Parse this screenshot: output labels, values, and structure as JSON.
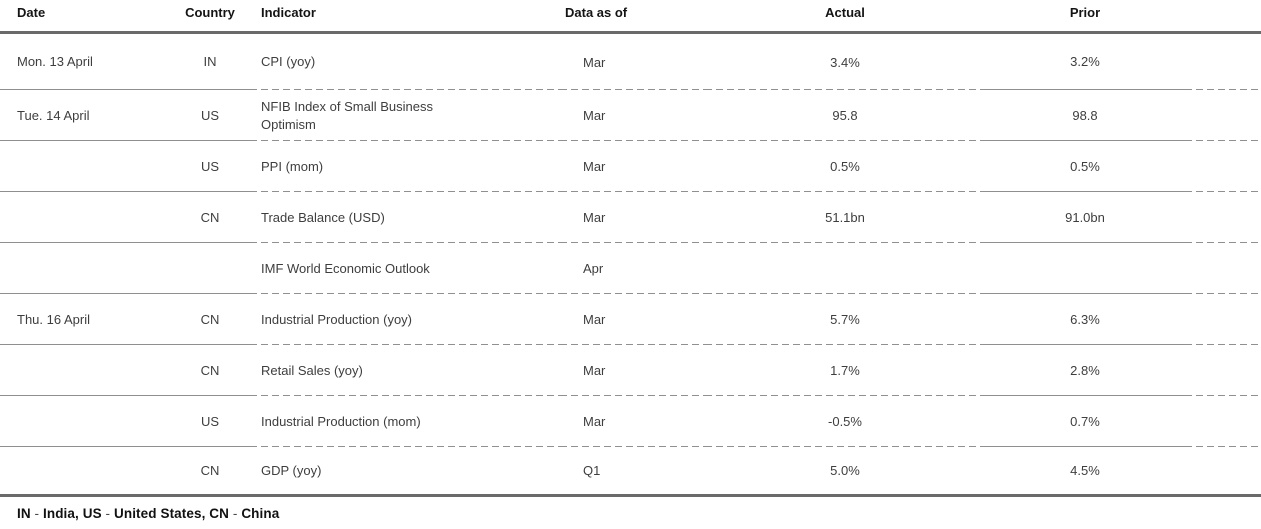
{
  "table": {
    "columns": {
      "date": "Date",
      "country": "Country",
      "indicator": "Indicator",
      "asof": "Data as of",
      "actual": "Actual",
      "prior": "Prior"
    },
    "rows": [
      {
        "date": "Mon. 13 April",
        "country": "IN",
        "indicator": "CPI (yoy)",
        "asof": "Mar",
        "actual": "3.4%",
        "prior": "3.2%"
      },
      {
        "date": "Tue. 14 April",
        "country": "US",
        "indicator": "NFIB Index of Small Business Optimism",
        "asof": "Mar",
        "actual": "95.8",
        "prior": "98.8"
      },
      {
        "date": "",
        "country": "US",
        "indicator": "PPI (mom)",
        "asof": "Mar",
        "actual": "0.5%",
        "prior": "0.5%"
      },
      {
        "date": "",
        "country": "CN",
        "indicator": "Trade Balance (USD)",
        "asof": "Mar",
        "actual": "51.1bn",
        "prior": "91.0bn"
      },
      {
        "date": "",
        "country": "",
        "indicator": "IMF World Economic Outlook",
        "asof": "Apr",
        "actual": "",
        "prior": ""
      },
      {
        "date": "Thu. 16 April",
        "country": "CN",
        "indicator": "Industrial Production (yoy)",
        "asof": "Mar",
        "actual": "5.7%",
        "prior": "6.3%"
      },
      {
        "date": "",
        "country": "CN",
        "indicator": "Retail Sales (yoy)",
        "asof": "Mar",
        "actual": "1.7%",
        "prior": "2.8%"
      },
      {
        "date": "",
        "country": "US",
        "indicator": "Industrial Production (mom)",
        "asof": "Mar",
        "actual": "-0.5%",
        "prior": "0.7%"
      },
      {
        "date": "",
        "country": "CN",
        "indicator": "GDP (yoy)",
        "asof": "Q1",
        "actual": "5.0%",
        "prior": "4.5%"
      }
    ],
    "footnote_parts": [
      {
        "text": "IN",
        "bold": true
      },
      {
        "text": " - ",
        "bold": false
      },
      {
        "text": "India, ",
        "bold": true
      },
      {
        "text": "US",
        "bold": true
      },
      {
        "text": " - ",
        "bold": false
      },
      {
        "text": "United States, ",
        "bold": true
      },
      {
        "text": "CN",
        "bold": true
      },
      {
        "text": " - ",
        "bold": false
      },
      {
        "text": "China",
        "bold": true
      }
    ]
  },
  "colors": {
    "thick_rule": "#6a6a6a",
    "separator": "#8f8f8f",
    "header_text": "#141414",
    "body_text": "#3e3e3e",
    "background": "#ffffff"
  }
}
